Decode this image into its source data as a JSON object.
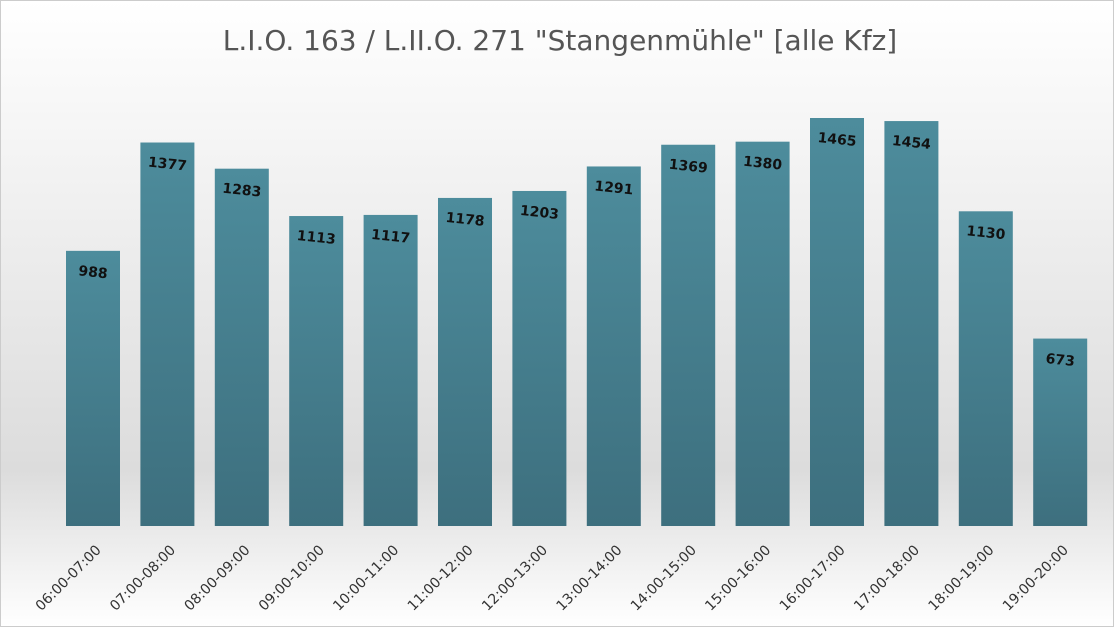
{
  "chart_data": {
    "type": "bar",
    "title": "L.I.O. 163 / L.II.O. 271 \"Stangenmühle\" [alle Kfz]",
    "categories": [
      "06:00-07:00",
      "07:00-08:00",
      "08:00-09:00",
      "09:00-10:00",
      "10:00-11:00",
      "11:00-12:00",
      "12:00-13:00",
      "13:00-14:00",
      "14:00-15:00",
      "15:00-16:00",
      "16:00-17:00",
      "17:00-18:00",
      "18:00-19:00",
      "19:00-20:00"
    ],
    "values": [
      988,
      1377,
      1283,
      1113,
      1117,
      1178,
      1203,
      1291,
      1369,
      1380,
      1465,
      1454,
      1130,
      673
    ],
    "color": "#4a8797"
  }
}
